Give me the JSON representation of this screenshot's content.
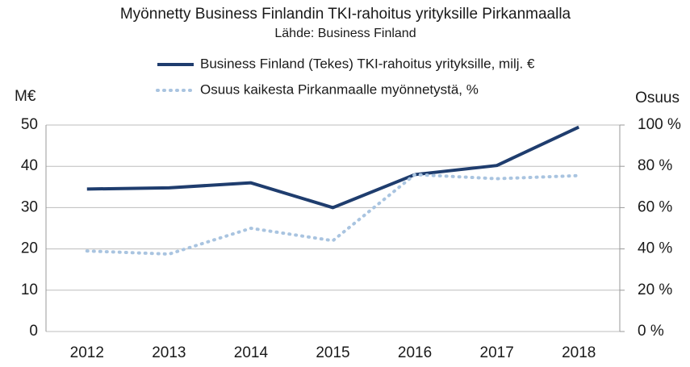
{
  "chart_data": {
    "type": "line",
    "title": "Myönnetty Business Finlandin TKI-rahoitus yrityksille Pirkanmaalla",
    "subtitle": "Lähde: Business Finland",
    "y_label": "M€",
    "y2_label": "Osuus",
    "categories": [
      "2012",
      "2013",
      "2014",
      "2015",
      "2016",
      "2017",
      "2018"
    ],
    "series": [
      {
        "name": "Business Finland (Tekes) TKI-rahoitus yrityksille, milj.  €",
        "color": "#1f3d6e",
        "values": [
          34.5,
          34.8,
          36,
          30,
          38,
          40.2,
          49.5
        ]
      },
      {
        "name": "Osuus kaikesta Pirkanmaalle myönnetystä, %",
        "color": "#a9c4e0",
        "values": [
          39,
          37.5,
          50,
          44,
          76,
          74,
          75.5
        ],
        "axis": "y2",
        "style": "dotted"
      }
    ],
    "ylim": [
      0,
      50
    ],
    "yticks": [
      0,
      10,
      20,
      30,
      40,
      50
    ],
    "y2lim": [
      0,
      100
    ],
    "y2ticks": [
      {
        "value": 0,
        "label": "0 %"
      },
      {
        "value": 20,
        "label": "20 %"
      },
      {
        "value": 40,
        "label": "40 %"
      },
      {
        "value": 60,
        "label": "60 %"
      },
      {
        "value": 80,
        "label": "80 %"
      },
      {
        "value": 100,
        "label": "100 %"
      }
    ],
    "grid": true
  }
}
